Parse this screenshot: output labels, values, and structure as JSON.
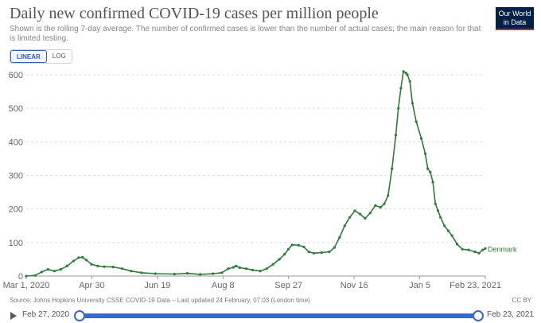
{
  "header": {
    "title": "Daily new confirmed COVID-19 cases per million people",
    "subtitle": "Shown is the rolling 7-day average. The number of confirmed cases is lower than the number of actual cases; the main reason for that is limited testing.",
    "logo": "Our World in Data"
  },
  "scale_toggle": {
    "linear_label": "LINEAR",
    "log_label": "LOG",
    "selected": "LINEAR"
  },
  "footer": {
    "source": "Source: Johns Hopkins University CSSE COVID-19 Data – Last updated 24 February, 07:03 (London time)",
    "license": "CC BY"
  },
  "timeline": {
    "start_label": "Feb 27, 2020",
    "end_label": "Feb 23, 2021"
  },
  "colors": {
    "series": "#2f7b3a",
    "grid": "#dddddd",
    "accent": "#3568d4"
  },
  "chart_data": {
    "type": "line",
    "title": "Daily new confirmed COVID-19 cases per million people",
    "xlabel": "",
    "ylabel": "",
    "x_range": [
      "2020-03-01",
      "2021-02-23"
    ],
    "ylim": [
      0,
      650
    ],
    "y_ticks": [
      0,
      100,
      200,
      300,
      400,
      500,
      600
    ],
    "x_tick_labels": [
      "Mar 1, 2020",
      "Apr 30",
      "Jun 19",
      "Aug 8",
      "Sep 27",
      "Nov 16",
      "Jan 5",
      "Feb 23, 2021"
    ],
    "grid": true,
    "series": [
      {
        "name": "Denmark",
        "points": [
          [
            "2020-03-01",
            0
          ],
          [
            "2020-03-08",
            2
          ],
          [
            "2020-03-13",
            12
          ],
          [
            "2020-03-18",
            20
          ],
          [
            "2020-03-23",
            15
          ],
          [
            "2020-03-28",
            20
          ],
          [
            "2020-04-02",
            30
          ],
          [
            "2020-04-07",
            45
          ],
          [
            "2020-04-11",
            55
          ],
          [
            "2020-04-14",
            56
          ],
          [
            "2020-04-17",
            48
          ],
          [
            "2020-04-21",
            35
          ],
          [
            "2020-04-26",
            30
          ],
          [
            "2020-05-01",
            28
          ],
          [
            "2020-05-08",
            27
          ],
          [
            "2020-05-15",
            22
          ],
          [
            "2020-05-22",
            15
          ],
          [
            "2020-05-30",
            10
          ],
          [
            "2020-06-10",
            7
          ],
          [
            "2020-06-25",
            6
          ],
          [
            "2020-07-05",
            8
          ],
          [
            "2020-07-15",
            5
          ],
          [
            "2020-07-25",
            7
          ],
          [
            "2020-08-01",
            10
          ],
          [
            "2020-08-06",
            22
          ],
          [
            "2020-08-10",
            26
          ],
          [
            "2020-08-12",
            30
          ],
          [
            "2020-08-15",
            25
          ],
          [
            "2020-08-20",
            22
          ],
          [
            "2020-08-25",
            18
          ],
          [
            "2020-08-31",
            15
          ],
          [
            "2020-09-05",
            22
          ],
          [
            "2020-09-10",
            35
          ],
          [
            "2020-09-15",
            50
          ],
          [
            "2020-09-19",
            65
          ],
          [
            "2020-09-22",
            80
          ],
          [
            "2020-09-25",
            93
          ],
          [
            "2020-09-30",
            92
          ],
          [
            "2020-10-04",
            87
          ],
          [
            "2020-10-08",
            72
          ],
          [
            "2020-10-12",
            68
          ],
          [
            "2020-10-18",
            70
          ],
          [
            "2020-10-24",
            72
          ],
          [
            "2020-10-28",
            85
          ],
          [
            "2020-11-01",
            115
          ],
          [
            "2020-11-05",
            150
          ],
          [
            "2020-11-09",
            175
          ],
          [
            "2020-11-13",
            195
          ],
          [
            "2020-11-17",
            185
          ],
          [
            "2020-11-21",
            172
          ],
          [
            "2020-11-25",
            188
          ],
          [
            "2020-11-29",
            210
          ],
          [
            "2020-12-03",
            205
          ],
          [
            "2020-12-06",
            215
          ],
          [
            "2020-12-09",
            240
          ],
          [
            "2020-12-12",
            320
          ],
          [
            "2020-12-15",
            420
          ],
          [
            "2020-12-17",
            500
          ],
          [
            "2020-12-19",
            560
          ],
          [
            "2020-12-21",
            610
          ],
          [
            "2020-12-23",
            605
          ],
          [
            "2020-12-24",
            600
          ],
          [
            "2020-12-26",
            580
          ],
          [
            "2020-12-28",
            515
          ],
          [
            "2020-12-31",
            460
          ],
          [
            "2021-01-04",
            410
          ],
          [
            "2021-01-07",
            365
          ],
          [
            "2021-01-09",
            320
          ],
          [
            "2021-01-11",
            310
          ],
          [
            "2021-01-13",
            280
          ],
          [
            "2021-01-15",
            215
          ],
          [
            "2021-01-17",
            195
          ],
          [
            "2021-01-19",
            175
          ],
          [
            "2021-01-22",
            150
          ],
          [
            "2021-01-25",
            135
          ],
          [
            "2021-01-28",
            120
          ],
          [
            "2021-02-01",
            95
          ],
          [
            "2021-02-05",
            80
          ],
          [
            "2021-02-10",
            78
          ],
          [
            "2021-02-15",
            72
          ],
          [
            "2021-02-18",
            68
          ],
          [
            "2021-02-21",
            78
          ],
          [
            "2021-02-23",
            82
          ]
        ]
      }
    ]
  }
}
